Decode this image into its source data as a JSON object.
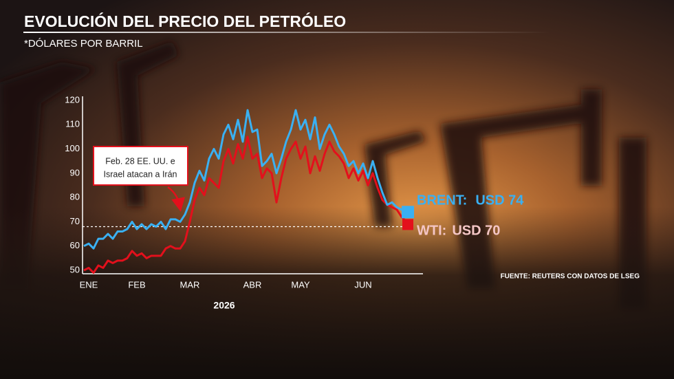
{
  "chart_data": {
    "type": "line",
    "title": "EVOLUCIÓN DEL PRECIO DEL PETRÓLEO",
    "subtitle": "*DÓLARES POR BARRIL",
    "x_label": "2026",
    "source": "FUENTE: REUTERS CON DATOS DE LSEG",
    "annotation": [
      "Feb. 28 EE. UU. e",
      "Israel atacan a Irán"
    ],
    "categories": [
      null,
      "ENE",
      null,
      null,
      null,
      null,
      null,
      null,
      null,
      null,
      null,
      "FEB",
      null,
      null,
      null,
      null,
      null,
      null,
      null,
      null,
      null,
      null,
      "MAR",
      null,
      null,
      null,
      null,
      null,
      null,
      null,
      null,
      null,
      null,
      null,
      null,
      "ABR",
      null,
      null,
      null,
      null,
      null,
      null,
      null,
      null,
      null,
      "MAY",
      null,
      null,
      null,
      null,
      null,
      null,
      null,
      null,
      null,
      null,
      null,
      null,
      "JUN",
      null,
      null,
      null,
      null,
      null,
      null,
      null,
      null,
      null
    ],
    "series": [
      {
        "name": "WTI:",
        "end_label": "USD 70",
        "color": "#e3101c",
        "label_color": "#f4c6c6",
        "values": [
          50,
          51,
          49,
          52,
          51,
          54,
          53,
          54,
          54,
          55,
          58,
          56,
          57,
          55,
          56,
          56,
          56,
          59,
          60,
          59,
          59,
          62,
          70,
          79,
          84,
          81,
          88,
          86,
          84,
          95,
          100,
          94,
          102,
          96,
          105,
          96,
          98,
          88,
          92,
          90,
          78,
          88,
          96,
          100,
          103,
          96,
          101,
          90,
          97,
          91,
          98,
          103,
          99,
          97,
          94,
          88,
          92,
          87,
          91,
          85,
          90,
          84,
          79,
          77,
          76,
          75,
          72,
          70
        ]
      },
      {
        "name": "BRENT:",
        "end_label": "USD 74",
        "color": "#3ab0f2",
        "label_color": "#3ab0f2",
        "values": [
          60,
          61,
          59,
          63,
          63,
          65,
          63,
          66,
          66,
          67,
          70,
          67,
          69,
          67,
          69,
          68,
          70,
          67,
          71,
          71,
          70,
          73,
          78,
          86,
          91,
          87,
          96,
          100,
          96,
          106,
          110,
          104,
          112,
          103,
          116,
          107,
          108,
          93,
          95,
          98,
          90,
          96,
          103,
          108,
          116,
          108,
          112,
          104,
          113,
          100,
          106,
          110,
          106,
          101,
          98,
          93,
          95,
          90,
          94,
          88,
          95,
          88,
          82,
          77,
          78,
          76,
          75,
          74
        ]
      }
    ],
    "reference_line": 68,
    "ylim": [
      50,
      120
    ],
    "yticks": [
      50,
      60,
      70,
      80,
      90,
      100,
      110,
      120
    ],
    "grid": false
  }
}
